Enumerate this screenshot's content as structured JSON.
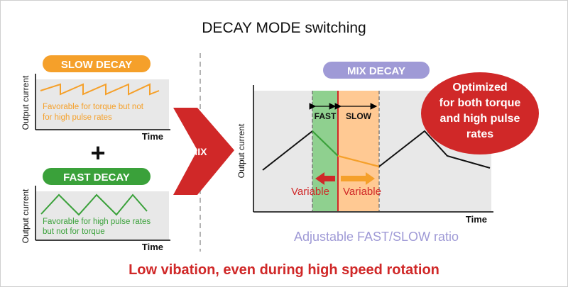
{
  "title": "DECAY MODE switching",
  "slow_decay": {
    "label": "SLOW DECAY",
    "note_line1": "Favorable for torque but not",
    "note_line2": "for high pulse rates",
    "y_label": "Output current",
    "x_label": "Time"
  },
  "plus": "+",
  "fast_decay": {
    "label": "FAST DECAY",
    "note_line1": "Favorable for high pulse rates",
    "note_line2": "but not for torque",
    "y_label": "Output current",
    "x_label": "Time"
  },
  "mix_arrow_label": "MIX",
  "mix_decay": {
    "label": "MIX DECAY",
    "fast_label": "FAST",
    "slow_label": "SLOW",
    "variable_left": "Variable",
    "variable_right": "Variable",
    "y_label": "Output current",
    "x_label": "Time",
    "ratio_caption": "Adjustable FAST/SLOW ratio"
  },
  "callout": {
    "line1": "Optimized",
    "line2": "for both torque",
    "line3": "and high pulse",
    "line4": "rates"
  },
  "bottom_caption": "Low vibation, even during high speed rotation",
  "colors": {
    "orange": "#f5a02a",
    "green": "#3aa13a",
    "red": "#d02828",
    "lavender": "#9f9ad6",
    "panel_gray": "#e8e8e8",
    "fast_band": "#8fd08f",
    "slow_band": "#ffc993"
  }
}
